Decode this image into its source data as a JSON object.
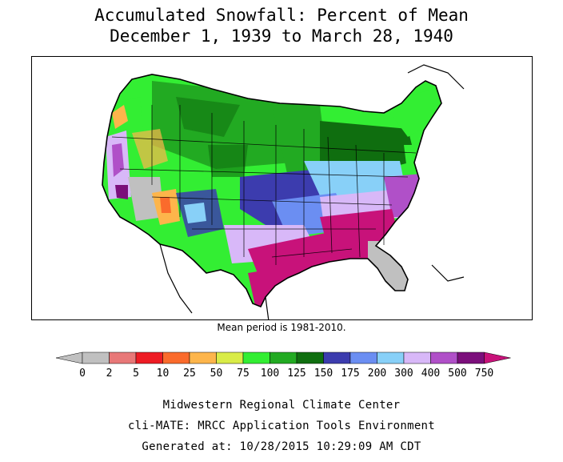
{
  "title_line_1": "Accumulated Snowfall: Percent of Mean",
  "title_line_2": "December 1, 1939 to March 28, 1940",
  "mean_note": "Mean period is 1981-2010.",
  "legend": {
    "tick_labels": [
      "0",
      "2",
      "5",
      "10",
      "25",
      "50",
      "75",
      "100",
      "125",
      "150",
      "175",
      "200",
      "300",
      "400",
      "500",
      "750"
    ],
    "bin_colors": [
      "#c0c0c0",
      "#e87878",
      "#ee1c24",
      "#fa6b2c",
      "#fdb54b",
      "#d9ec47",
      "#33ee33",
      "#22aa22",
      "#0f6e0f",
      "#3c3cae",
      "#6b8ef2",
      "#88d0f8",
      "#d8b8f8",
      "#b050c8",
      "#7b0f7b"
    ],
    "below_color": "#c0c0c0",
    "above_color": "#c8127a"
  },
  "region_colors": {
    "northern_plains_green": "#22aa22",
    "northern_tier_bright_green": "#33ee33",
    "northeast_dark_green": "#0f6e0f",
    "central_blue": "#3c3cae",
    "midwest_light_blue": "#88d0f8",
    "southern_plains_purple": "#d8b8f8",
    "southeast_magenta": "#c8127a",
    "southwest_orange": "#fdb54b",
    "no_data_gray": "#c0c0c0"
  },
  "credits": {
    "line_1": "Midwestern Regional Climate Center",
    "line_2": "cli-MATE: MRCC Application Tools Environment",
    "line_3": "Generated at: 10/28/2015 10:29:09 AM CDT"
  }
}
